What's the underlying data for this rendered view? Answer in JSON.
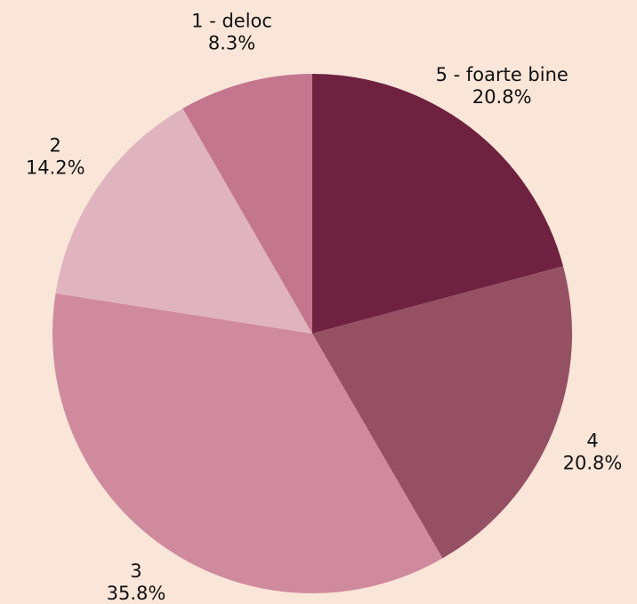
{
  "chart_data": {
    "type": "pie",
    "categories": [
      "5 - foarte bine",
      "4",
      "3",
      "2",
      "1 - deloc"
    ],
    "values": [
      20.8,
      20.8,
      35.8,
      14.2,
      8.3
    ],
    "value_labels": [
      "20.8%",
      "20.8%",
      "35.8%",
      "14.2%",
      "8.3%"
    ],
    "colors": [
      "#6e2240",
      "#955064",
      "#d08a9e",
      "#e0b4bf",
      "#c4768f"
    ]
  }
}
